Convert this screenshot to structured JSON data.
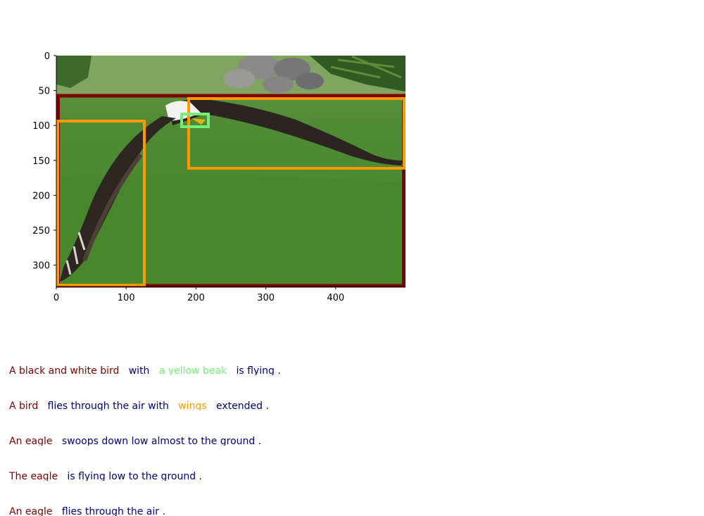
{
  "figure": {
    "image_description": "bald eagle flying low over green grass with rocks and ferns in the background",
    "x_ticks": [
      "0",
      "100",
      "200",
      "300",
      "400"
    ],
    "y_ticks": [
      "0",
      "50",
      "100",
      "150",
      "200",
      "250",
      "300"
    ],
    "boxes": [
      {
        "label": "bird",
        "color": "#800000"
      },
      {
        "label": "wing-right",
        "color": "#ff9900"
      },
      {
        "label": "wing-left",
        "color": "#ff9900"
      },
      {
        "label": "beak",
        "color": "#77ee77"
      }
    ]
  },
  "colors": {
    "red": "#800000",
    "navy": "#00007f",
    "green": "#77ee77",
    "orange": "#ff9900"
  },
  "captions": [
    [
      {
        "text": "A black and white bird",
        "color": "#800000"
      },
      {
        "text": "with",
        "color": "#00007f"
      },
      {
        "text": "a yellow beak",
        "color": "#77ee77"
      },
      {
        "text": "is flying .",
        "color": "#00007f"
      }
    ],
    [
      {
        "text": "A bird",
        "color": "#800000"
      },
      {
        "text": "flies through the air with",
        "color": "#00007f"
      },
      {
        "text": "wings",
        "color": "#ff9900"
      },
      {
        "text": "extended .",
        "color": "#00007f"
      }
    ],
    [
      {
        "text": "An eagle",
        "color": "#800000"
      },
      {
        "text": "swoops down low almost to the ground .",
        "color": "#00007f"
      }
    ],
    [
      {
        "text": "The eagle",
        "color": "#800000"
      },
      {
        "text": "is flying low to the ground .",
        "color": "#00007f"
      }
    ],
    [
      {
        "text": "An eagle",
        "color": "#800000"
      },
      {
        "text": "flies through the air .",
        "color": "#00007f"
      }
    ]
  ]
}
